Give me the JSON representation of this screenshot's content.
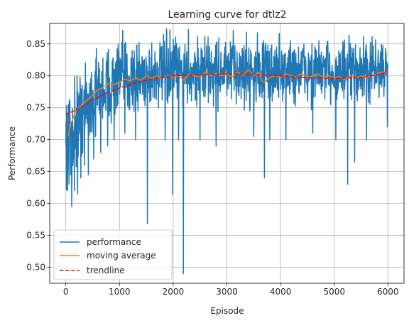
{
  "chart_data": {
    "type": "line",
    "title": "Learning curve for dtlz2",
    "xlabel": "Episode",
    "ylabel": "Performance",
    "xlim": [
      -300,
      6300
    ],
    "ylim": [
      0.475,
      0.882
    ],
    "xticks": [
      0,
      1000,
      2000,
      3000,
      4000,
      5000,
      6000
    ],
    "yticks": [
      0.5,
      0.55,
      0.6,
      0.65,
      0.7,
      0.75,
      0.8,
      0.85
    ],
    "ytick_labels": [
      "0.50",
      "0.55",
      "0.60",
      "0.65",
      "0.70",
      "0.75",
      "0.80",
      "0.85"
    ],
    "grid": true,
    "legend_position": "lower-left",
    "series": [
      {
        "name": "performance",
        "color": "#1f77b4",
        "style": "solid",
        "x_range": [
          0,
          6000
        ],
        "band": [
          [
            0,
            0.64,
            0.77
          ],
          [
            100,
            0.63,
            0.8
          ],
          [
            300,
            0.67,
            0.82
          ],
          [
            600,
            0.71,
            0.84
          ],
          [
            1000,
            0.73,
            0.86
          ],
          [
            2000,
            0.75,
            0.865
          ],
          [
            3000,
            0.75,
            0.865
          ],
          [
            4000,
            0.75,
            0.865
          ],
          [
            5000,
            0.75,
            0.86
          ],
          [
            6000,
            0.76,
            0.86
          ]
        ],
        "outliers": [
          [
            0,
            0.69
          ],
          [
            30,
            0.62
          ],
          [
            60,
            0.63
          ],
          [
            90,
            0.645
          ],
          [
            110,
            0.595
          ],
          [
            160,
            0.62
          ],
          [
            220,
            0.615
          ],
          [
            280,
            0.64
          ],
          [
            350,
            0.66
          ],
          [
            420,
            0.645
          ],
          [
            520,
            0.67
          ],
          [
            650,
            0.68
          ],
          [
            780,
            0.69
          ],
          [
            900,
            0.7
          ],
          [
            1100,
            0.71
          ],
          [
            1300,
            0.7
          ],
          [
            1520,
            0.568
          ],
          [
            1850,
            0.7
          ],
          [
            1990,
            0.614
          ],
          [
            2100,
            0.7
          ],
          [
            2190,
            0.49
          ],
          [
            2500,
            0.7
          ],
          [
            2800,
            0.69
          ],
          [
            3500,
            0.705
          ],
          [
            3700,
            0.64
          ],
          [
            3800,
            0.7
          ],
          [
            4100,
            0.7
          ],
          [
            4600,
            0.71
          ],
          [
            5030,
            0.7
          ],
          [
            5250,
            0.63
          ],
          [
            5380,
            0.665
          ],
          [
            5600,
            0.7
          ],
          [
            5990,
            0.72
          ]
        ]
      },
      {
        "name": "moving average",
        "color": "#ff7f0e",
        "style": "solid",
        "points": [
          [
            50,
            0.705
          ],
          [
            80,
            0.725
          ],
          [
            120,
            0.73
          ],
          [
            180,
            0.745
          ],
          [
            250,
            0.75
          ],
          [
            300,
            0.755
          ],
          [
            400,
            0.762
          ],
          [
            500,
            0.77
          ],
          [
            600,
            0.778
          ],
          [
            700,
            0.782
          ],
          [
            800,
            0.788
          ],
          [
            900,
            0.786
          ],
          [
            1000,
            0.79
          ],
          [
            1100,
            0.795
          ],
          [
            1200,
            0.792
          ],
          [
            1300,
            0.797
          ],
          [
            1400,
            0.793
          ],
          [
            1500,
            0.8
          ],
          [
            1600,
            0.796
          ],
          [
            1700,
            0.8
          ],
          [
            1800,
            0.797
          ],
          [
            1900,
            0.8
          ],
          [
            2000,
            0.798
          ],
          [
            2100,
            0.8
          ],
          [
            2200,
            0.793
          ],
          [
            2300,
            0.803
          ],
          [
            2400,
            0.8
          ],
          [
            2500,
            0.798
          ],
          [
            2600,
            0.806
          ],
          [
            2700,
            0.8
          ],
          [
            2800,
            0.804
          ],
          [
            2900,
            0.8
          ],
          [
            3000,
            0.802
          ],
          [
            3100,
            0.798
          ],
          [
            3200,
            0.806
          ],
          [
            3300,
            0.8
          ],
          [
            3400,
            0.81
          ],
          [
            3500,
            0.8
          ],
          [
            3600,
            0.805
          ],
          [
            3650,
            0.792
          ],
          [
            3700,
            0.79
          ],
          [
            3800,
            0.797
          ],
          [
            3900,
            0.8
          ],
          [
            4000,
            0.797
          ],
          [
            4100,
            0.803
          ],
          [
            4200,
            0.8
          ],
          [
            4300,
            0.798
          ],
          [
            4400,
            0.804
          ],
          [
            4500,
            0.797
          ],
          [
            4600,
            0.8
          ],
          [
            4700,
            0.803
          ],
          [
            4800,
            0.797
          ],
          [
            4900,
            0.8
          ],
          [
            5000,
            0.796
          ],
          [
            5100,
            0.799
          ],
          [
            5200,
            0.794
          ],
          [
            5300,
            0.8
          ],
          [
            5400,
            0.796
          ],
          [
            5500,
            0.8
          ],
          [
            5600,
            0.797
          ],
          [
            5700,
            0.8
          ],
          [
            5800,
            0.803
          ],
          [
            5900,
            0.806
          ],
          [
            6000,
            0.804
          ]
        ]
      },
      {
        "name": "trendline",
        "color": "#ff0000",
        "style": "dashed",
        "points": [
          [
            0,
            0.739
          ],
          [
            250,
            0.749
          ],
          [
            500,
            0.762
          ],
          [
            750,
            0.772
          ],
          [
            1000,
            0.781
          ],
          [
            1250,
            0.788
          ],
          [
            1500,
            0.793
          ],
          [
            1750,
            0.797
          ],
          [
            2000,
            0.8
          ],
          [
            2500,
            0.802
          ],
          [
            3000,
            0.803
          ],
          [
            3500,
            0.802
          ],
          [
            4000,
            0.8
          ],
          [
            4500,
            0.797
          ],
          [
            5000,
            0.796
          ],
          [
            5500,
            0.797
          ],
          [
            6000,
            0.805
          ]
        ]
      }
    ]
  }
}
